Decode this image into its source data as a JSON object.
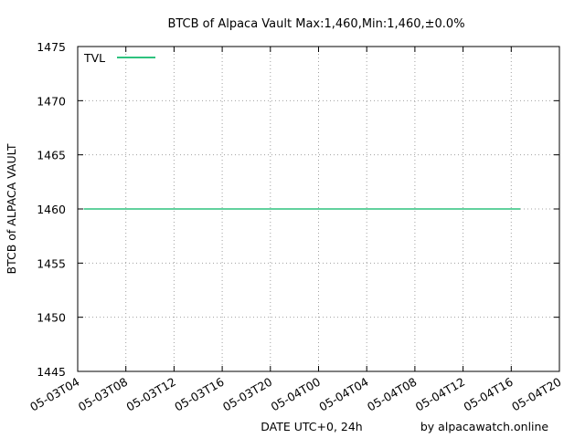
{
  "chart_data": {
    "type": "line",
    "title": "BTCB of Alpaca Vault Max:1,460,Min:1,460,±0.0%",
    "xlabel": "DATE UTC+0, 24h",
    "ylabel": "BTCB of ALPACA VAULT",
    "credit": "by alpacawatch.online",
    "ylim": [
      1445,
      1475
    ],
    "yticks": [
      "1445",
      "1450",
      "1455",
      "1460",
      "1465",
      "1470",
      "1475"
    ],
    "xlim": [
      "2022-05-03T04:00",
      "2022-05-04T20:00"
    ],
    "xticks": [
      "05-03T04",
      "05-03T08",
      "05-03T12",
      "05-03T16",
      "05-03T20",
      "05-04T00",
      "05-04T04",
      "05-04T08",
      "05-04T12",
      "05-04T16",
      "05-04T20"
    ],
    "grid": true,
    "legend_position": "top-left",
    "series": [
      {
        "name": "TVL",
        "color": "#2ec27e",
        "x": [
          "2022-05-03T04:30",
          "2022-05-04T16:45"
        ],
        "y": [
          1460,
          1460
        ]
      }
    ]
  }
}
